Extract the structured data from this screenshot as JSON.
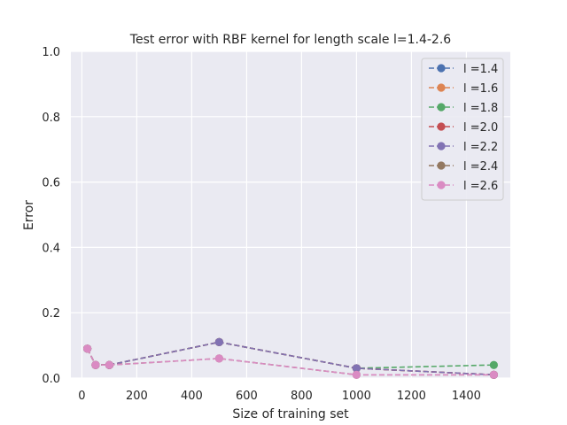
{
  "chart_data": {
    "type": "line",
    "title": "Test error with RBF kernel for length scale l=1.4-2.6",
    "xlabel": "Size of training set",
    "ylabel": "Error",
    "xlim": [
      -40,
      1560
    ],
    "ylim": [
      0,
      1
    ],
    "xticks": [
      0,
      200,
      400,
      600,
      800,
      1000,
      1200,
      1400
    ],
    "yticks": [
      0.0,
      0.2,
      0.4,
      0.6,
      0.8,
      1.0
    ],
    "xtick_labels": [
      "0",
      "200",
      "400",
      "600",
      "800",
      "1000",
      "1200",
      "1400"
    ],
    "ytick_labels": [
      "0.0",
      "0.2",
      "0.4",
      "0.6",
      "0.8",
      "1.0"
    ],
    "grid": true,
    "legend_position": "top-right",
    "x": [
      20,
      50,
      100,
      500,
      1000,
      1500
    ],
    "series": [
      {
        "name": "l =1.4",
        "color": "#4c72b0",
        "values": [
          0.09,
          0.04,
          0.04,
          0.11,
          0.03,
          0.01
        ]
      },
      {
        "name": "l =1.6",
        "color": "#dd8452",
        "values": [
          0.09,
          0.04,
          0.04,
          0.11,
          0.03,
          0.01
        ]
      },
      {
        "name": "l =1.8",
        "color": "#55a868",
        "values": [
          0.09,
          0.04,
          0.04,
          0.11,
          0.03,
          0.04
        ]
      },
      {
        "name": "l =2.0",
        "color": "#c44e52",
        "values": [
          0.09,
          0.04,
          0.04,
          0.11,
          0.03,
          0.01
        ]
      },
      {
        "name": "l =2.2",
        "color": "#8172b3",
        "values": [
          0.09,
          0.04,
          0.04,
          0.11,
          0.03,
          0.01
        ]
      },
      {
        "name": "l =2.4",
        "color": "#937860",
        "values": [
          0.09,
          0.04,
          0.04,
          0.06,
          0.01,
          0.01
        ]
      },
      {
        "name": "l =2.6",
        "color": "#da8bc3",
        "values": [
          0.09,
          0.04,
          0.04,
          0.06,
          0.01,
          0.01
        ]
      }
    ]
  }
}
